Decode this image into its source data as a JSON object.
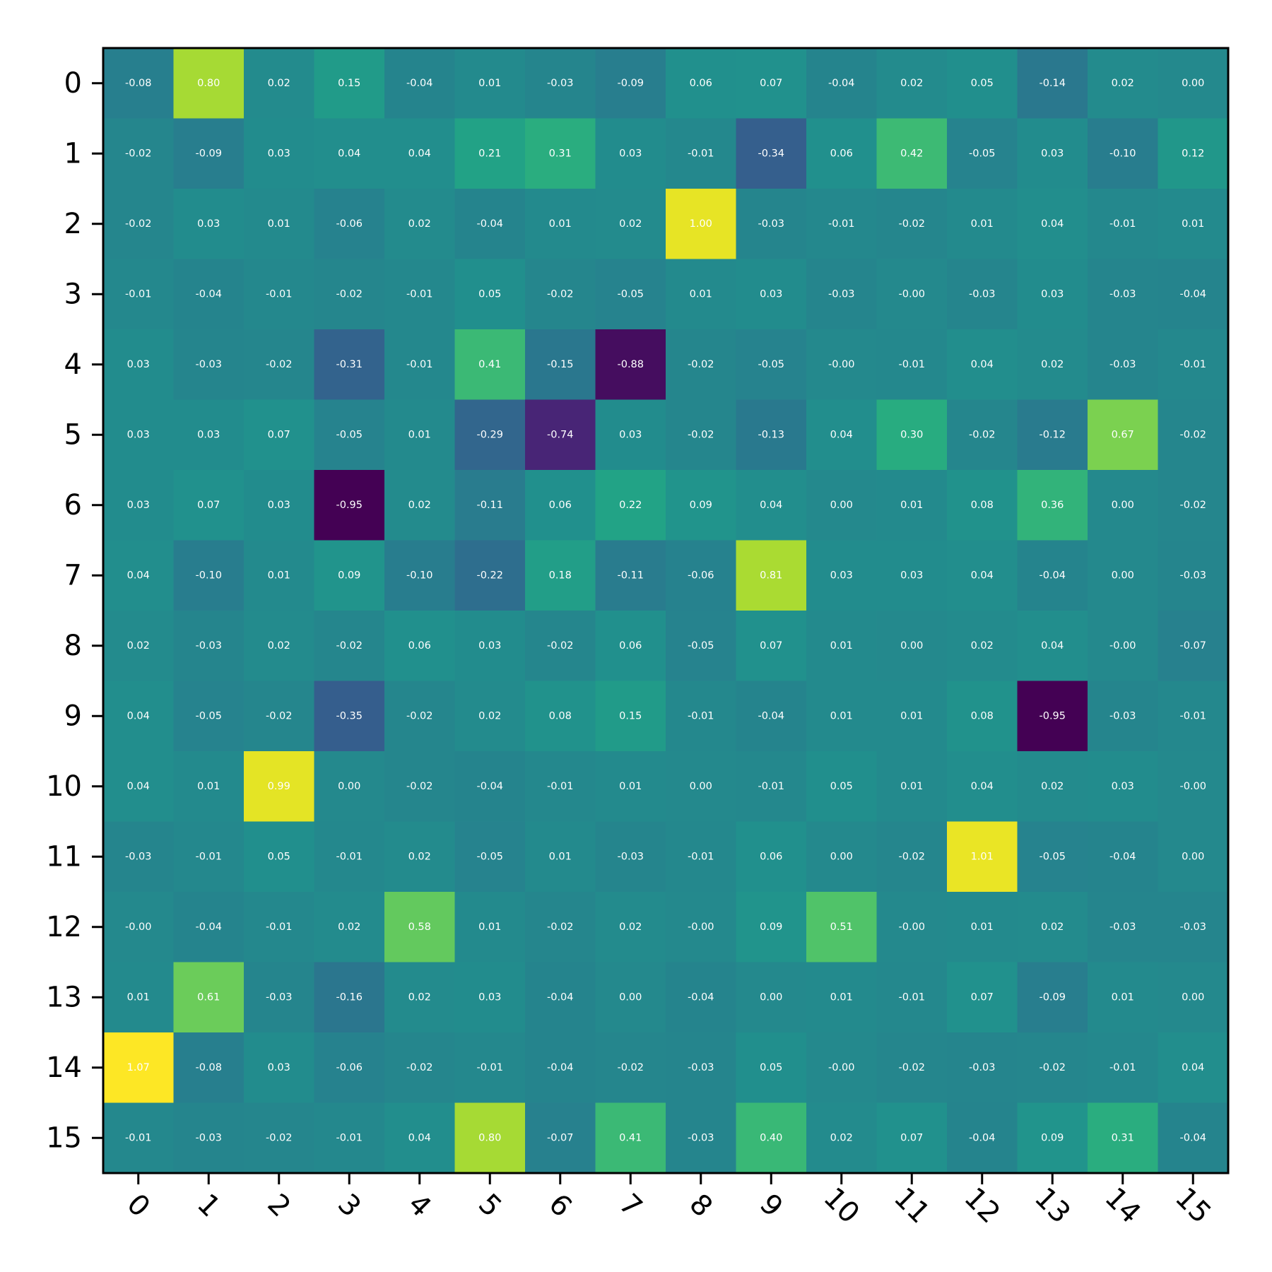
{
  "chart_data": {
    "type": "heatmap",
    "title": "",
    "xlabel": "",
    "ylabel": "",
    "colormap": "viridis",
    "value_range": [
      -0.95,
      1.07
    ],
    "grid": false,
    "x_categories": [
      "0",
      "1",
      "2",
      "3",
      "4",
      "5",
      "6",
      "7",
      "8",
      "9",
      "10",
      "11",
      "12",
      "13",
      "14",
      "15"
    ],
    "y_categories": [
      "0",
      "1",
      "2",
      "3",
      "4",
      "5",
      "6",
      "7",
      "8",
      "9",
      "10",
      "11",
      "12",
      "13",
      "14",
      "15"
    ],
    "values": [
      [
        -0.08,
        0.8,
        0.02,
        0.15,
        -0.04,
        0.01,
        -0.03,
        -0.09,
        0.06,
        0.07,
        -0.04,
        0.02,
        0.05,
        -0.14,
        0.02,
        0.0
      ],
      [
        -0.02,
        -0.09,
        0.03,
        0.04,
        0.04,
        0.21,
        0.31,
        0.03,
        -0.01,
        -0.34,
        0.06,
        0.42,
        -0.05,
        0.03,
        -0.1,
        0.12
      ],
      [
        -0.02,
        0.03,
        0.01,
        -0.06,
        0.02,
        -0.04,
        0.01,
        0.02,
        1.0,
        -0.03,
        -0.01,
        -0.02,
        0.01,
        0.04,
        -0.01,
        0.01
      ],
      [
        -0.01,
        -0.04,
        -0.01,
        -0.02,
        -0.01,
        0.05,
        -0.02,
        -0.05,
        0.01,
        0.03,
        -0.03,
        -0.0,
        -0.03,
        0.03,
        -0.03,
        -0.04
      ],
      [
        0.03,
        -0.03,
        -0.02,
        -0.31,
        -0.01,
        0.41,
        -0.15,
        -0.88,
        -0.02,
        -0.05,
        -0.0,
        -0.01,
        0.04,
        0.02,
        -0.03,
        -0.01
      ],
      [
        0.03,
        0.03,
        0.07,
        -0.05,
        0.01,
        -0.29,
        -0.74,
        0.03,
        -0.02,
        -0.13,
        0.04,
        0.3,
        -0.02,
        -0.12,
        0.67,
        -0.02
      ],
      [
        0.03,
        0.07,
        0.03,
        -0.95,
        0.02,
        -0.11,
        0.06,
        0.22,
        0.09,
        0.04,
        0.0,
        0.01,
        0.08,
        0.36,
        0.0,
        -0.02
      ],
      [
        0.04,
        -0.1,
        0.01,
        0.09,
        -0.1,
        -0.22,
        0.18,
        -0.11,
        -0.06,
        0.81,
        0.03,
        0.03,
        0.04,
        -0.04,
        0.0,
        -0.03
      ],
      [
        0.02,
        -0.03,
        0.02,
        -0.02,
        0.06,
        0.03,
        -0.02,
        0.06,
        -0.05,
        0.07,
        0.01,
        0.0,
        0.02,
        0.04,
        -0.0,
        -0.07
      ],
      [
        0.04,
        -0.05,
        -0.02,
        -0.35,
        -0.02,
        0.02,
        0.08,
        0.15,
        -0.01,
        -0.04,
        0.01,
        0.01,
        0.08,
        -0.95,
        -0.03,
        -0.01
      ],
      [
        0.04,
        0.01,
        0.99,
        0.0,
        -0.02,
        -0.04,
        -0.01,
        0.01,
        0.0,
        -0.01,
        0.05,
        0.01,
        0.04,
        0.02,
        0.03,
        -0.0
      ],
      [
        -0.03,
        -0.01,
        0.05,
        -0.01,
        0.02,
        -0.05,
        0.01,
        -0.03,
        -0.01,
        0.06,
        0.0,
        -0.02,
        1.01,
        -0.05,
        -0.04,
        0.0
      ],
      [
        -0.0,
        -0.04,
        -0.01,
        0.02,
        0.58,
        0.01,
        -0.02,
        0.02,
        -0.0,
        0.09,
        0.51,
        -0.0,
        0.01,
        0.02,
        -0.03,
        -0.03
      ],
      [
        0.01,
        0.61,
        -0.03,
        -0.16,
        0.02,
        0.03,
        -0.04,
        0.0,
        -0.04,
        0.0,
        0.01,
        -0.01,
        0.07,
        -0.09,
        0.01,
        0.0
      ],
      [
        1.07,
        -0.08,
        0.03,
        -0.06,
        -0.02,
        -0.01,
        -0.04,
        -0.02,
        -0.03,
        0.05,
        -0.0,
        -0.02,
        -0.03,
        -0.02,
        -0.01,
        0.04
      ],
      [
        -0.01,
        -0.03,
        -0.02,
        -0.01,
        0.04,
        0.8,
        -0.07,
        0.41,
        -0.03,
        0.4,
        0.02,
        0.07,
        -0.04,
        0.09,
        0.31,
        -0.04
      ]
    ]
  }
}
